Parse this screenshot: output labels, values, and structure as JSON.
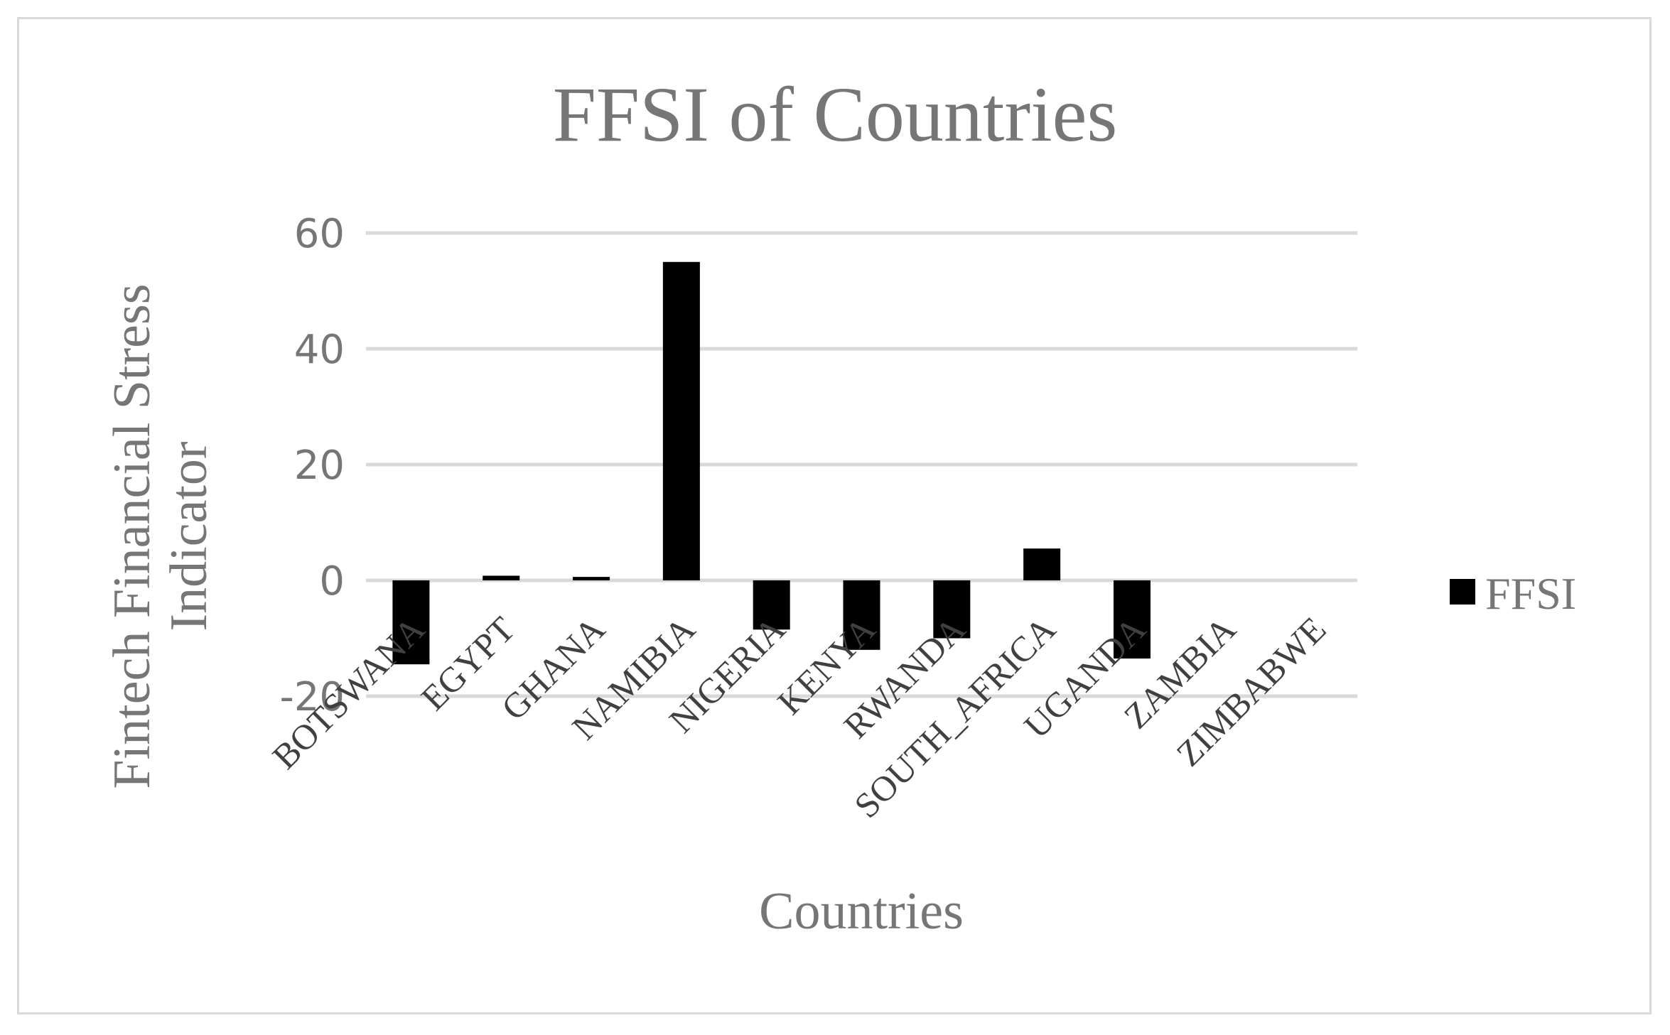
{
  "chart_data": {
    "type": "bar",
    "title": "FFSI of Countries",
    "xlabel": "Countries",
    "ylabel": "Fintech Financial Stress Indicator",
    "categories": [
      "BOTSWANA",
      "EGYPT",
      "GHANA",
      "NAMIBIA",
      "NIGERIA",
      "KENYA",
      "RWANDA",
      "SOUTH_AFRICA",
      "UGANDA",
      "ZAMBIA",
      "ZIMBABWE"
    ],
    "series": [
      {
        "name": "FFSI",
        "values": [
          -14.5,
          0.8,
          0.6,
          55.0,
          -8.5,
          -12.0,
          -10.0,
          5.5,
          -13.5,
          0,
          0
        ]
      }
    ],
    "ylim": [
      -20,
      60
    ],
    "yticks": [
      -20,
      0,
      20,
      40,
      60
    ],
    "grid": true,
    "legend_position": "right",
    "bar_color": "#000000"
  }
}
